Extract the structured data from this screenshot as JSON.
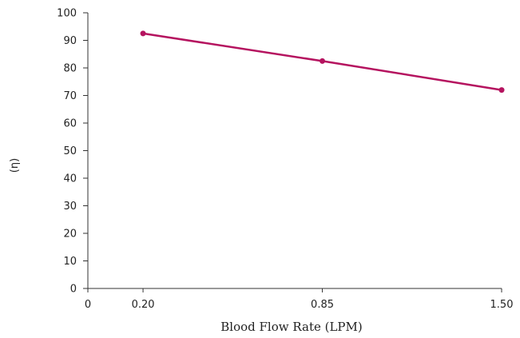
{
  "chart_data": {
    "type": "line",
    "xlabel": "Blood Flow Rate (LPM)",
    "ylabel": "(η)",
    "x_ticks": [
      {
        "value": 0,
        "label": "0"
      },
      {
        "value": 0.2,
        "label": "0.20"
      },
      {
        "value": 0.85,
        "label": "0.85"
      },
      {
        "value": 1.5,
        "label": "1.50"
      }
    ],
    "y_ticks": [
      0,
      10,
      20,
      30,
      40,
      50,
      60,
      70,
      80,
      90,
      100
    ],
    "xlim": [
      0,
      1.5
    ],
    "ylim": [
      0,
      100
    ],
    "grid": false,
    "series": [
      {
        "x": [
          0.2,
          0.85,
          1.5
        ],
        "values": [
          92.5,
          82.5,
          72
        ]
      }
    ],
    "colors": {
      "series": "#b5135f",
      "axis": "#333333"
    }
  }
}
